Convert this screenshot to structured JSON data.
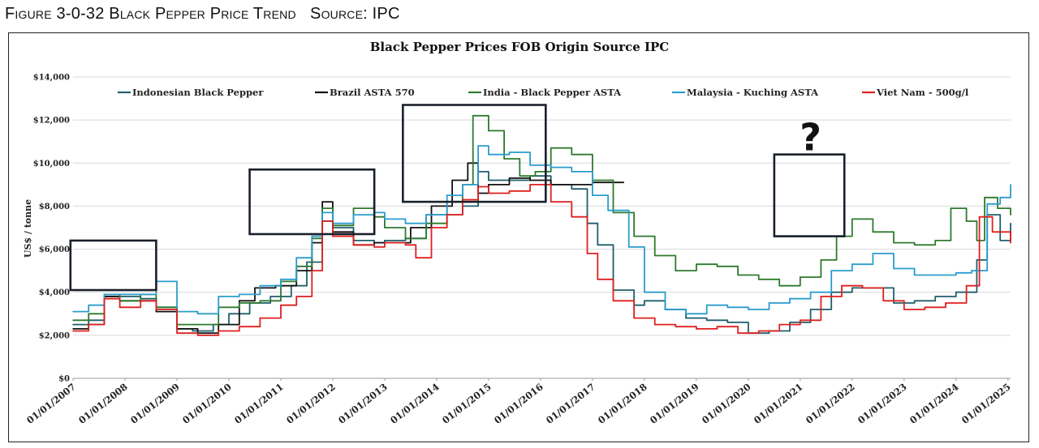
{
  "figure_caption": "Figure 3-0-32 Black Pepper Price Trend   Source: IPC",
  "chart_data": {
    "type": "line",
    "title": "Black Pepper Prices FOB Origin Source IPC",
    "xlabel": "",
    "ylabel": "US$ / tonne",
    "ylim": [
      0,
      14000
    ],
    "xlim": [
      2007.0,
      2025.05
    ],
    "y_ticks": [
      0,
      2000,
      4000,
      6000,
      8000,
      10000,
      12000,
      14000
    ],
    "y_tick_labels": [
      "$0",
      "$2,000",
      "$4,000",
      "$6,000",
      "$8,000",
      "$10,000",
      "$12,000",
      "$14,000"
    ],
    "x_tick_values": [
      2007,
      2008,
      2009,
      2010,
      2011,
      2012,
      2013,
      2014,
      2015,
      2016,
      2017,
      2018,
      2019,
      2020,
      2021,
      2022,
      2023,
      2024,
      2025
    ],
    "x_tick_labels": [
      "01/01/2007",
      "01/01/2008",
      "01/01/2009",
      "01/01/2010",
      "01/01/2011",
      "01/01/2012",
      "01/01/2013",
      "01/01/2014",
      "01/01/2015",
      "01/01/2016",
      "01/01/2017",
      "01/01/2018",
      "01/01/2019",
      "01/01/2020",
      "01/01/2021",
      "01/01/2022",
      "01/01/2023",
      "01/01/2024",
      "01/01/2025"
    ],
    "grid": true,
    "legend": "top",
    "series": [
      {
        "name": "Indonesian Black Pepper",
        "color": "#1f5f6b",
        "points": [
          [
            2007.0,
            2500
          ],
          [
            2007.3,
            2700
          ],
          [
            2007.6,
            3800
          ],
          [
            2007.9,
            3800
          ],
          [
            2008.3,
            3700
          ],
          [
            2008.6,
            3300
          ],
          [
            2009.0,
            2300
          ],
          [
            2009.3,
            2200
          ],
          [
            2009.7,
            2500
          ],
          [
            2010.0,
            3000
          ],
          [
            2010.4,
            3500
          ],
          [
            2010.8,
            3800
          ],
          [
            2011.2,
            4300
          ],
          [
            2011.5,
            5400
          ],
          [
            2011.8,
            7300
          ],
          [
            2012.0,
            7000
          ],
          [
            2012.4,
            6400
          ],
          [
            2012.8,
            6300
          ],
          [
            2013.0,
            6400
          ],
          [
            2013.4,
            6500
          ],
          [
            2013.8,
            7600
          ],
          [
            2014.2,
            7600
          ],
          [
            2014.5,
            8000
          ],
          [
            2014.8,
            9600
          ],
          [
            2015.0,
            9200
          ],
          [
            2015.4,
            9200
          ],
          [
            2015.8,
            9400
          ],
          [
            2016.2,
            9000
          ],
          [
            2016.6,
            8800
          ],
          [
            2016.9,
            7200
          ],
          [
            2017.1,
            6200
          ],
          [
            2017.4,
            4100
          ],
          [
            2017.8,
            3400
          ],
          [
            2018.0,
            3600
          ],
          [
            2018.4,
            3200
          ],
          [
            2018.8,
            2800
          ],
          [
            2019.2,
            2700
          ],
          [
            2019.6,
            2600
          ],
          [
            2020.0,
            2100
          ],
          [
            2020.4,
            2200
          ],
          [
            2020.8,
            2600
          ],
          [
            2021.2,
            3200
          ],
          [
            2021.6,
            4000
          ],
          [
            2022.0,
            4200
          ],
          [
            2022.4,
            4200
          ],
          [
            2022.8,
            3500
          ],
          [
            2023.2,
            3600
          ],
          [
            2023.6,
            3800
          ],
          [
            2024.0,
            4000
          ],
          [
            2024.4,
            5500
          ],
          [
            2024.6,
            7600
          ],
          [
            2024.85,
            6400
          ],
          [
            2025.05,
            7200
          ]
        ]
      },
      {
        "name": "Brazil  ASTA 570",
        "color": "#111111",
        "points": [
          [
            2007.0,
            2300
          ],
          [
            2007.3,
            2500
          ],
          [
            2007.6,
            3800
          ],
          [
            2007.9,
            3600
          ],
          [
            2008.3,
            3600
          ],
          [
            2008.6,
            3100
          ],
          [
            2009.0,
            2300
          ],
          [
            2009.4,
            2100
          ],
          [
            2009.8,
            2500
          ],
          [
            2010.2,
            3600
          ],
          [
            2010.5,
            4200
          ],
          [
            2010.9,
            4300
          ],
          [
            2011.3,
            5000
          ],
          [
            2011.6,
            6300
          ],
          [
            2011.8,
            8200
          ],
          [
            2012.0,
            6800
          ],
          [
            2012.4,
            6200
          ],
          [
            2012.8,
            6300
          ],
          [
            2013.0,
            6300
          ],
          [
            2013.5,
            7000
          ],
          [
            2013.9,
            8000
          ],
          [
            2014.3,
            9200
          ],
          [
            2014.6,
            10000
          ],
          [
            2014.8,
            8600
          ],
          [
            2015.0,
            9000
          ],
          [
            2015.4,
            9300
          ],
          [
            2015.8,
            9200
          ],
          [
            2016.2,
            9000
          ],
          [
            2017.0,
            9100
          ],
          [
            2017.3,
            9100
          ],
          [
            2017.6,
            9100
          ]
        ]
      },
      {
        "name": "India - Black Pepper ASTA",
        "color": "#2d7a2d",
        "points": [
          [
            2007.0,
            2700
          ],
          [
            2007.3,
            3000
          ],
          [
            2007.6,
            3900
          ],
          [
            2007.9,
            3600
          ],
          [
            2008.3,
            3900
          ],
          [
            2008.6,
            3300
          ],
          [
            2009.0,
            2500
          ],
          [
            2009.4,
            2500
          ],
          [
            2009.8,
            3300
          ],
          [
            2010.2,
            3500
          ],
          [
            2010.6,
            3600
          ],
          [
            2011.0,
            4500
          ],
          [
            2011.3,
            5200
          ],
          [
            2011.6,
            6500
          ],
          [
            2011.8,
            7900
          ],
          [
            2012.0,
            7100
          ],
          [
            2012.4,
            7900
          ],
          [
            2012.8,
            7500
          ],
          [
            2013.0,
            7000
          ],
          [
            2013.4,
            6500
          ],
          [
            2013.8,
            7200
          ],
          [
            2014.2,
            8200
          ],
          [
            2014.5,
            9000
          ],
          [
            2014.7,
            12200
          ],
          [
            2015.0,
            11500
          ],
          [
            2015.3,
            10200
          ],
          [
            2015.6,
            9400
          ],
          [
            2015.9,
            9600
          ],
          [
            2016.2,
            10700
          ],
          [
            2016.6,
            10400
          ],
          [
            2017.0,
            9200
          ],
          [
            2017.4,
            7700
          ],
          [
            2017.8,
            6600
          ],
          [
            2018.2,
            5700
          ],
          [
            2018.6,
            5000
          ],
          [
            2019.0,
            5300
          ],
          [
            2019.4,
            5200
          ],
          [
            2019.8,
            4800
          ],
          [
            2020.2,
            4600
          ],
          [
            2020.6,
            4300
          ],
          [
            2021.0,
            4700
          ],
          [
            2021.4,
            5500
          ],
          [
            2021.7,
            6600
          ],
          [
            2022.0,
            7400
          ],
          [
            2022.4,
            6800
          ],
          [
            2022.8,
            6300
          ],
          [
            2023.2,
            6200
          ],
          [
            2023.6,
            6400
          ],
          [
            2023.9,
            7900
          ],
          [
            2024.2,
            7300
          ],
          [
            2024.4,
            6400
          ],
          [
            2024.55,
            8400
          ],
          [
            2024.8,
            7900
          ],
          [
            2025.05,
            7600
          ]
        ]
      },
      {
        "name": "Malaysia -  Kuching ASTA",
        "color": "#2b9ccd",
        "points": [
          [
            2007.0,
            3100
          ],
          [
            2007.3,
            3400
          ],
          [
            2007.6,
            3900
          ],
          [
            2007.9,
            3900
          ],
          [
            2008.3,
            3900
          ],
          [
            2008.6,
            4500
          ],
          [
            2009.0,
            3100
          ],
          [
            2009.4,
            3000
          ],
          [
            2009.8,
            3800
          ],
          [
            2010.2,
            3900
          ],
          [
            2010.6,
            4300
          ],
          [
            2011.0,
            4600
          ],
          [
            2011.3,
            5600
          ],
          [
            2011.6,
            6600
          ],
          [
            2011.8,
            7700
          ],
          [
            2012.0,
            7200
          ],
          [
            2012.4,
            7600
          ],
          [
            2012.8,
            7700
          ],
          [
            2013.0,
            7400
          ],
          [
            2013.4,
            7200
          ],
          [
            2013.8,
            7600
          ],
          [
            2014.2,
            8500
          ],
          [
            2014.5,
            9000
          ],
          [
            2014.8,
            10800
          ],
          [
            2015.0,
            10400
          ],
          [
            2015.4,
            10500
          ],
          [
            2015.8,
            9900
          ],
          [
            2016.2,
            9800
          ],
          [
            2016.6,
            9600
          ],
          [
            2017.0,
            8500
          ],
          [
            2017.3,
            7800
          ],
          [
            2017.7,
            6100
          ],
          [
            2018.0,
            4000
          ],
          [
            2018.4,
            3200
          ],
          [
            2018.8,
            3000
          ],
          [
            2019.2,
            3400
          ],
          [
            2019.6,
            3300
          ],
          [
            2020.0,
            3200
          ],
          [
            2020.4,
            3500
          ],
          [
            2020.8,
            3700
          ],
          [
            2021.2,
            4000
          ],
          [
            2021.6,
            5000
          ],
          [
            2022.0,
            5300
          ],
          [
            2022.4,
            5800
          ],
          [
            2022.8,
            5100
          ],
          [
            2023.2,
            4800
          ],
          [
            2023.6,
            4800
          ],
          [
            2024.0,
            4900
          ],
          [
            2024.3,
            5000
          ],
          [
            2024.6,
            8100
          ],
          [
            2024.85,
            8400
          ],
          [
            2025.05,
            9000
          ]
        ]
      },
      {
        "name": "Viet Nam -  500g/l",
        "color": "#e01f1f",
        "points": [
          [
            2007.0,
            2200
          ],
          [
            2007.3,
            2500
          ],
          [
            2007.6,
            3700
          ],
          [
            2007.9,
            3300
          ],
          [
            2008.3,
            3600
          ],
          [
            2008.6,
            3200
          ],
          [
            2009.0,
            2100
          ],
          [
            2009.4,
            2000
          ],
          [
            2009.8,
            2200
          ],
          [
            2010.2,
            2400
          ],
          [
            2010.6,
            2800
          ],
          [
            2011.0,
            3400
          ],
          [
            2011.3,
            3800
          ],
          [
            2011.6,
            5000
          ],
          [
            2011.8,
            7300
          ],
          [
            2012.0,
            6600
          ],
          [
            2012.4,
            6200
          ],
          [
            2012.8,
            6100
          ],
          [
            2013.0,
            6300
          ],
          [
            2013.4,
            6200
          ],
          [
            2013.6,
            5600
          ],
          [
            2013.9,
            7000
          ],
          [
            2014.2,
            7600
          ],
          [
            2014.5,
            8300
          ],
          [
            2014.8,
            8900
          ],
          [
            2015.0,
            8600
          ],
          [
            2015.4,
            8700
          ],
          [
            2015.8,
            9000
          ],
          [
            2016.2,
            8200
          ],
          [
            2016.6,
            7500
          ],
          [
            2016.9,
            5800
          ],
          [
            2017.1,
            4600
          ],
          [
            2017.4,
            3600
          ],
          [
            2017.8,
            2800
          ],
          [
            2018.2,
            2500
          ],
          [
            2018.6,
            2400
          ],
          [
            2019.0,
            2300
          ],
          [
            2019.4,
            2400
          ],
          [
            2019.8,
            2100
          ],
          [
            2020.2,
            2200
          ],
          [
            2020.6,
            2500
          ],
          [
            2021.0,
            2700
          ],
          [
            2021.4,
            3800
          ],
          [
            2021.8,
            4300
          ],
          [
            2022.2,
            4200
          ],
          [
            2022.6,
            3600
          ],
          [
            2023.0,
            3200
          ],
          [
            2023.4,
            3300
          ],
          [
            2023.8,
            3500
          ],
          [
            2024.2,
            4300
          ],
          [
            2024.45,
            7500
          ],
          [
            2024.7,
            6800
          ],
          [
            2025.05,
            6300
          ]
        ]
      }
    ],
    "highlight_boxes": [
      {
        "x_from": 2006.95,
        "x_to": 2008.6,
        "y_from": 4100,
        "y_to": 6400
      },
      {
        "x_from": 2010.4,
        "x_to": 2012.8,
        "y_from": 6700,
        "y_to": 9700
      },
      {
        "x_from": 2013.35,
        "x_to": 2016.1,
        "y_from": 8200,
        "y_to": 12700
      },
      {
        "x_from": 2020.5,
        "x_to": 2021.85,
        "y_from": 6600,
        "y_to": 10400
      }
    ],
    "annotations": [
      {
        "text": "?",
        "x": 2021.2,
        "y": 11200
      }
    ]
  }
}
